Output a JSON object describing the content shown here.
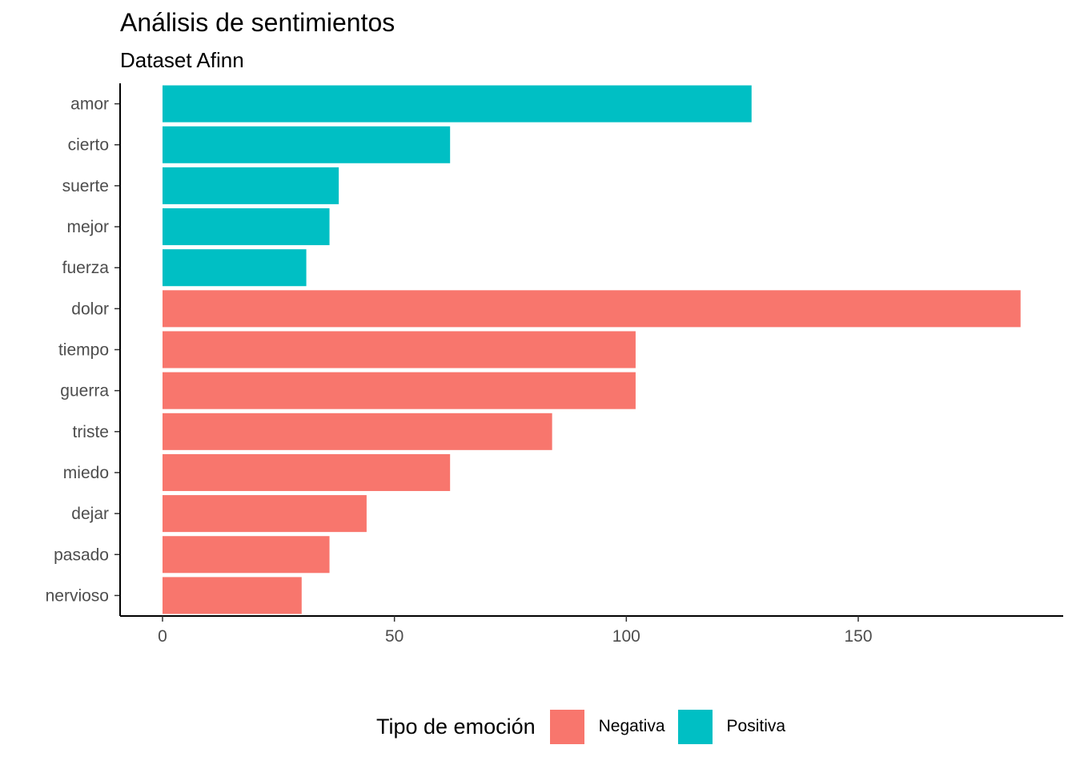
{
  "chart_data": {
    "type": "bar",
    "orientation": "horizontal",
    "title": "Análisis de sentimientos",
    "subtitle": "Dataset Afinn",
    "categories": [
      "amor",
      "cierto",
      "suerte",
      "mejor",
      "fuerza",
      "dolor",
      "tiempo",
      "guerra",
      "triste",
      "miedo",
      "dejar",
      "pasado",
      "nervioso"
    ],
    "values": [
      127,
      62,
      38,
      36,
      31,
      185,
      102,
      102,
      84,
      62,
      44,
      36,
      30
    ],
    "groups": [
      "Positiva",
      "Positiva",
      "Positiva",
      "Positiva",
      "Positiva",
      "Negativa",
      "Negativa",
      "Negativa",
      "Negativa",
      "Negativa",
      "Negativa",
      "Negativa",
      "Negativa"
    ],
    "x_ticks": [
      0,
      50,
      100,
      150
    ],
    "xlim": [
      -9.25,
      194.25
    ],
    "grid": false,
    "legend": {
      "title": "Tipo de emoción",
      "position": "bottom",
      "entries": [
        {
          "label": "Negativa",
          "color": "#F8766D"
        },
        {
          "label": "Positiva",
          "color": "#00BFC4"
        }
      ]
    }
  }
}
